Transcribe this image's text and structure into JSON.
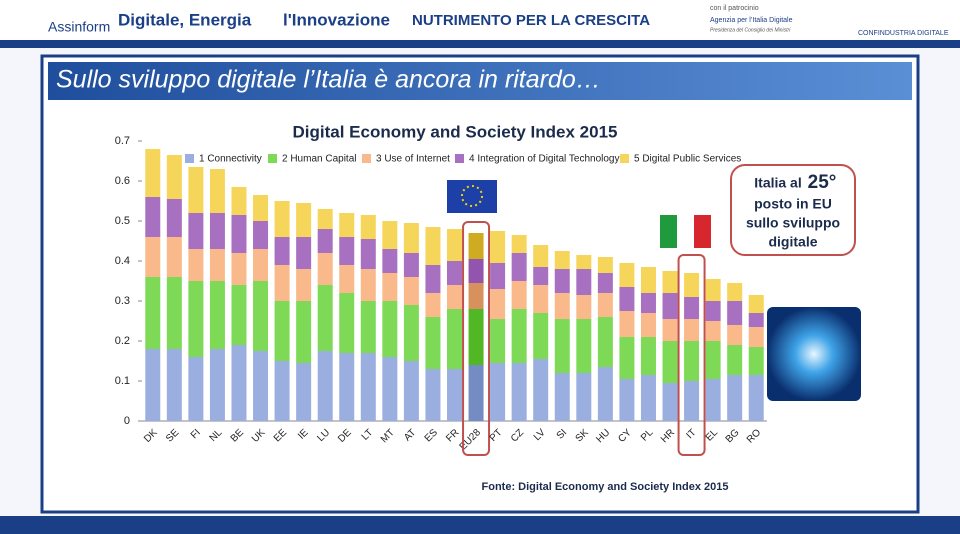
{
  "header": {
    "brand": "Assinform",
    "event_left": "Digitale, Energia",
    "event_right": "l'Innovazione",
    "tagline": "NUTRIMENTO PER LA CRESCITA",
    "patronage": "con il patrocinio",
    "agency": "Agenzia per l’Italia Digitale",
    "agency_sub": "Presidenza del Consiglio dei Ministri",
    "partner": "CONFINDUSTRIA DIGITALE"
  },
  "slide_title": "Sullo sviluppo digitale l’Italia è ancora in ritardo…",
  "callout": [
    "Italia al",
    "25°",
    "posto in EU",
    "sullo sviluppo",
    "digitale"
  ],
  "source": "Fonte: Digital Economy and Society Index 2015",
  "chart_data": {
    "type": "stacked_bar",
    "title": "Digital Economy and Society Index 2015",
    "categories": [
      "DK",
      "SE",
      "FI",
      "NL",
      "BE",
      "UK",
      "EE",
      "IE",
      "LU",
      "DE",
      "LT",
      "MT",
      "AT",
      "ES",
      "FR",
      "EU28",
      "PT",
      "CZ",
      "LV",
      "SI",
      "SK",
      "HU",
      "CY",
      "PL",
      "HR",
      "IT",
      "EL",
      "BG",
      "RO"
    ],
    "series": [
      {
        "name": "1 Connectivity",
        "color": "#9aaee0",
        "values": [
          0.18,
          0.18,
          0.16,
          0.18,
          0.19,
          0.175,
          0.15,
          0.145,
          0.175,
          0.17,
          0.17,
          0.16,
          0.15,
          0.13,
          0.13,
          0.14,
          0.145,
          0.145,
          0.155,
          0.12,
          0.12,
          0.135,
          0.105,
          0.115,
          0.095,
          0.1,
          0.105,
          0.115,
          0.115
        ]
      },
      {
        "name": "2 Human Capital",
        "color": "#7ed957",
        "values": [
          0.18,
          0.18,
          0.19,
          0.17,
          0.15,
          0.175,
          0.15,
          0.155,
          0.165,
          0.15,
          0.13,
          0.14,
          0.14,
          0.13,
          0.15,
          0.14,
          0.11,
          0.135,
          0.115,
          0.135,
          0.135,
          0.125,
          0.105,
          0.095,
          0.105,
          0.1,
          0.095,
          0.075,
          0.07
        ]
      },
      {
        "name": "3 Use of Internet",
        "color": "#f9b98a",
        "values": [
          0.1,
          0.1,
          0.08,
          0.08,
          0.08,
          0.08,
          0.09,
          0.08,
          0.08,
          0.07,
          0.08,
          0.07,
          0.07,
          0.06,
          0.06,
          0.065,
          0.075,
          0.07,
          0.07,
          0.065,
          0.06,
          0.06,
          0.065,
          0.06,
          0.055,
          0.055,
          0.05,
          0.05,
          0.05
        ]
      },
      {
        "name": "4 Integration of Digital Technology",
        "color": "#a870c0",
        "values": [
          0.1,
          0.095,
          0.09,
          0.09,
          0.095,
          0.07,
          0.07,
          0.08,
          0.06,
          0.07,
          0.075,
          0.06,
          0.06,
          0.07,
          0.06,
          0.06,
          0.065,
          0.07,
          0.045,
          0.06,
          0.065,
          0.05,
          0.06,
          0.05,
          0.065,
          0.055,
          0.05,
          0.06,
          0.035
        ]
      },
      {
        "name": "5 Digital Public Services",
        "color": "#f5d55a",
        "values": [
          0.12,
          0.11,
          0.115,
          0.11,
          0.07,
          0.065,
          0.09,
          0.085,
          0.05,
          0.06,
          0.06,
          0.07,
          0.075,
          0.095,
          0.08,
          0.065,
          0.08,
          0.045,
          0.055,
          0.045,
          0.035,
          0.04,
          0.06,
          0.065,
          0.055,
          0.06,
          0.055,
          0.045,
          0.045
        ]
      }
    ],
    "ylim": [
      0,
      0.7
    ],
    "yticks": [
      0,
      0.1,
      0.2,
      0.3,
      0.4,
      0.5,
      0.6,
      0.7
    ],
    "grid": false
  }
}
